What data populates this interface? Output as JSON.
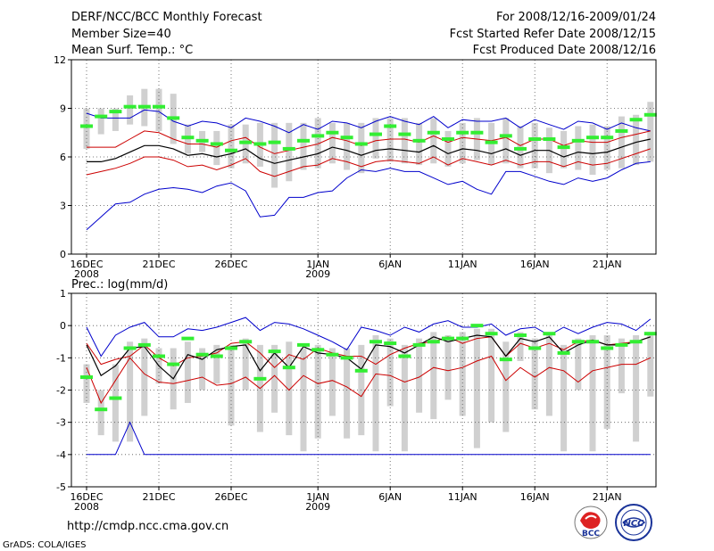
{
  "header": {
    "title": "DERF/NCC/BCC Monthly Forecast",
    "member_size": "Member Size=40",
    "variable": "Mean Surf. Temp.: °C",
    "forecast_range": "For 2008/12/16-2009/01/24",
    "fcst_started": "Fcst Started Refer Date 2008/12/15",
    "fcst_produced": "Fcst Produced Date 2008/12/16"
  },
  "footer": {
    "url": "http://cmdp.ncc.cma.gov.cn",
    "grads": "GrADS: COLA/IGES",
    "logo_bcc": "BCC",
    "logo_ncc": "NCC"
  },
  "colors": {
    "outer": "#0000cc",
    "inner": "#cc0000",
    "mean": "#000000",
    "bar": "#d0d0d0",
    "marker": "#33ee33"
  },
  "x_axis": {
    "days": 40,
    "tick_days": [
      1,
      6,
      11,
      17,
      22,
      27,
      32,
      37
    ],
    "tick_labels": [
      "16DEC",
      "21DEC",
      "26DEC",
      "1JAN",
      "6JAN",
      "11JAN",
      "16JAN",
      "21JAN"
    ],
    "tick_sublabels": [
      "2008",
      "",
      "",
      "2009",
      "",
      "",
      "",
      ""
    ]
  },
  "chart_data": [
    {
      "type": "line",
      "title": "Mean Surf. Temp.: °C",
      "ylim": [
        0,
        12
      ],
      "yticks": [
        0,
        3,
        6,
        9,
        12
      ],
      "x": [
        1,
        2,
        3,
        4,
        5,
        6,
        7,
        8,
        9,
        10,
        11,
        12,
        13,
        14,
        15,
        16,
        17,
        18,
        19,
        20,
        21,
        22,
        23,
        24,
        25,
        26,
        27,
        28,
        29,
        30,
        31,
        32,
        33,
        34,
        35,
        36,
        37,
        38,
        39,
        40
      ],
      "series": [
        {
          "name": "upper",
          "values": [
            8.7,
            8.4,
            8.4,
            8.4,
            8.9,
            8.8,
            8.2,
            7.9,
            8.2,
            8.1,
            7.8,
            8.4,
            8.2,
            7.9,
            7.5,
            8.0,
            7.7,
            8.2,
            8.1,
            7.8,
            8.2,
            8.5,
            8.2,
            8.0,
            8.5,
            7.8,
            8.3,
            8.2,
            8.2,
            8.4,
            7.8,
            8.3,
            8.0,
            7.7,
            8.2,
            8.1,
            7.7,
            8.1,
            7.8,
            7.6
          ]
        },
        {
          "name": "upper_inner",
          "values": [
            6.6,
            6.6,
            6.6,
            7.1,
            7.6,
            7.5,
            7.1,
            6.8,
            6.8,
            6.6,
            7.0,
            7.2,
            6.6,
            6.2,
            6.4,
            6.6,
            6.8,
            7.2,
            7.0,
            6.7,
            7.0,
            7.1,
            7.1,
            6.9,
            7.3,
            6.9,
            7.2,
            7.1,
            7.0,
            7.2,
            6.7,
            7.1,
            7.1,
            6.7,
            7.0,
            6.9,
            6.9,
            7.2,
            7.4,
            7.6
          ]
        },
        {
          "name": "mean",
          "values": [
            5.7,
            5.7,
            5.9,
            6.3,
            6.7,
            6.7,
            6.5,
            6.1,
            6.2,
            6.0,
            6.2,
            6.5,
            5.9,
            5.6,
            5.8,
            6.0,
            6.2,
            6.6,
            6.4,
            6.1,
            6.4,
            6.5,
            6.4,
            6.3,
            6.7,
            6.2,
            6.5,
            6.4,
            6.2,
            6.5,
            6.1,
            6.4,
            6.4,
            6.0,
            6.3,
            6.2,
            6.3,
            6.6,
            6.9,
            7.1
          ]
        },
        {
          "name": "lower_inner",
          "values": [
            4.9,
            5.1,
            5.3,
            5.6,
            6.0,
            6.0,
            5.8,
            5.4,
            5.5,
            5.2,
            5.5,
            5.9,
            5.1,
            4.8,
            5.1,
            5.4,
            5.5,
            5.9,
            5.7,
            5.4,
            5.7,
            5.8,
            5.7,
            5.6,
            6.0,
            5.5,
            5.9,
            5.7,
            5.5,
            5.8,
            5.5,
            5.7,
            5.7,
            5.4,
            5.7,
            5.5,
            5.6,
            5.9,
            6.2,
            6.5
          ]
        },
        {
          "name": "lower",
          "values": [
            1.5,
            2.3,
            3.1,
            3.2,
            3.7,
            4.0,
            4.1,
            4.0,
            3.8,
            4.2,
            4.4,
            3.9,
            2.3,
            2.4,
            3.5,
            3.5,
            3.8,
            3.9,
            4.7,
            5.2,
            5.1,
            5.3,
            5.1,
            5.1,
            4.7,
            4.3,
            4.5,
            4.0,
            3.7,
            5.1,
            5.1,
            4.8,
            4.5,
            4.3,
            4.7,
            4.5,
            4.7,
            5.2,
            5.6,
            5.7
          ]
        }
      ],
      "bars": {
        "low": [
          6.5,
          7.4,
          7.6,
          8.0,
          7.9,
          7.6,
          6.8,
          6.2,
          6.3,
          5.5,
          5.3,
          5.6,
          5.4,
          4.1,
          4.5,
          5.2,
          5.3,
          5.6,
          5.2,
          5.0,
          5.9,
          5.7,
          5.6,
          5.5,
          5.6,
          5.4,
          5.6,
          5.8,
          5.5,
          5.6,
          5.3,
          5.3,
          5.0,
          5.3,
          5.2,
          4.9,
          5.2,
          5.3,
          5.5,
          5.7
        ],
        "high": [
          9.0,
          9.0,
          9.0,
          9.8,
          10.2,
          10.2,
          9.9,
          8.0,
          7.6,
          7.6,
          8.0,
          8.0,
          8.1,
          8.1,
          8.1,
          8.1,
          8.4,
          8.1,
          8.1,
          8.1,
          8.4,
          8.4,
          8.4,
          8.1,
          8.4,
          7.6,
          8.1,
          8.4,
          8.1,
          8.4,
          7.9,
          8.1,
          7.8,
          7.6,
          7.9,
          8.0,
          7.9,
          8.5,
          8.6,
          9.4
        ]
      },
      "markers": [
        7.9,
        8.5,
        8.8,
        9.1,
        9.1,
        9.1,
        8.4,
        7.2,
        7.0,
        6.8,
        6.4,
        6.9,
        6.8,
        6.9,
        6.5,
        7.0,
        7.3,
        7.5,
        7.2,
        6.8,
        7.4,
        7.9,
        7.4,
        7.0,
        7.5,
        7.1,
        7.5,
        7.5,
        6.9,
        7.3,
        6.5,
        7.1,
        7.1,
        6.6,
        7.0,
        7.2,
        7.2,
        7.6,
        8.3,
        8.6
      ]
    },
    {
      "type": "line",
      "title": "Prec.: log(mm/d)",
      "ylim": [
        -5,
        1
      ],
      "yticks": [
        -5,
        -4,
        -3,
        -2,
        -1,
        0,
        1
      ],
      "x": [
        1,
        2,
        3,
        4,
        5,
        6,
        7,
        8,
        9,
        10,
        11,
        12,
        13,
        14,
        15,
        16,
        17,
        18,
        19,
        20,
        21,
        22,
        23,
        24,
        25,
        26,
        27,
        28,
        29,
        30,
        31,
        32,
        33,
        34,
        35,
        36,
        37,
        38,
        39,
        40
      ],
      "series": [
        {
          "name": "upper",
          "values": [
            -0.05,
            -0.95,
            -0.3,
            -0.05,
            0.1,
            -0.35,
            -0.35,
            -0.1,
            -0.15,
            -0.05,
            0.1,
            0.25,
            -0.15,
            0.1,
            0.05,
            -0.1,
            -0.3,
            -0.5,
            -0.75,
            -0.05,
            -0.15,
            -0.3,
            -0.05,
            -0.2,
            0.05,
            0.15,
            -0.05,
            -0.05,
            0.05,
            -0.3,
            -0.1,
            -0.05,
            -0.3,
            -0.05,
            -0.25,
            -0.05,
            0.1,
            0.05,
            -0.15,
            0.2
          ]
        },
        {
          "name": "mean_upper",
          "values": [
            -0.55,
            -1.2,
            -1.05,
            -0.95,
            -0.6,
            -1.0,
            -1.25,
            -1.0,
            -0.95,
            -0.85,
            -0.55,
            -0.5,
            -0.85,
            -1.3,
            -0.9,
            -1.05,
            -0.7,
            -0.85,
            -0.95,
            -0.95,
            -1.2,
            -0.9,
            -0.7,
            -0.55,
            -0.5,
            -0.35,
            -0.55,
            -0.4,
            -0.35,
            -0.95,
            -0.55,
            -0.7,
            -0.55,
            -0.75,
            -0.5,
            -0.45,
            -0.6,
            -0.55,
            -0.5,
            -0.35
          ]
        },
        {
          "name": "mean",
          "values": [
            -0.6,
            -1.55,
            -1.25,
            -0.7,
            -0.65,
            -1.25,
            -1.65,
            -0.9,
            -1.05,
            -0.75,
            -0.65,
            -0.6,
            -1.4,
            -0.85,
            -1.3,
            -0.65,
            -0.85,
            -0.9,
            -1.0,
            -1.35,
            -0.6,
            -0.65,
            -0.85,
            -0.6,
            -0.35,
            -0.5,
            -0.4,
            -0.3,
            -0.35,
            -0.95,
            -0.4,
            -0.5,
            -0.35,
            -0.85,
            -0.6,
            -0.45,
            -0.6,
            -0.6,
            -0.5,
            -0.35
          ]
        },
        {
          "name": "lower_inner",
          "values": [
            -1.3,
            -2.4,
            -1.7,
            -1.0,
            -1.5,
            -1.75,
            -1.8,
            -1.7,
            -1.6,
            -1.85,
            -1.8,
            -1.6,
            -1.95,
            -1.55,
            -2.0,
            -1.55,
            -1.8,
            -1.7,
            -1.9,
            -2.2,
            -1.5,
            -1.55,
            -1.75,
            -1.6,
            -1.3,
            -1.4,
            -1.3,
            -1.1,
            -0.95,
            -1.7,
            -1.3,
            -1.6,
            -1.3,
            -1.4,
            -1.75,
            -1.4,
            -1.3,
            -1.2,
            -1.2,
            -1.0
          ]
        },
        {
          "name": "lower",
          "values": [
            -4.0,
            -4.0,
            -4.0,
            -3.0,
            -4.0,
            -4.0,
            -4.0,
            -4.0,
            -4.0,
            -4.0,
            -4.0,
            -4.0,
            -4.0,
            -4.0,
            -4.0,
            -4.0,
            -4.0,
            -4.0,
            -4.0,
            -4.0,
            -4.0,
            -4.0,
            -4.0,
            -4.0,
            -4.0,
            -4.0,
            -4.0,
            -4.0,
            -4.0,
            -4.0,
            -4.0,
            -4.0,
            -4.0,
            -4.0,
            -4.0,
            -4.0,
            -4.0,
            -4.0,
            -4.0,
            -4.0
          ]
        }
      ],
      "bars": {
        "low": [
          -2.4,
          -3.4,
          -3.6,
          -3.6,
          -2.8,
          -1.8,
          -2.6,
          -2.4,
          -2.0,
          -1.8,
          -3.1,
          -2.0,
          -3.3,
          -2.7,
          -3.4,
          -3.9,
          -3.5,
          -2.8,
          -3.5,
          -3.4,
          -3.9,
          -2.5,
          -3.9,
          -2.7,
          -2.9,
          -2.3,
          -2.8,
          -3.8,
          -3.0,
          -3.3,
          -1.1,
          -2.6,
          -2.8,
          -3.9,
          -2.0,
          -3.9,
          -3.2,
          -2.1,
          -3.6,
          -2.2
        ],
        "high": [
          -1.2,
          -2.0,
          -1.2,
          -0.5,
          -0.4,
          -0.7,
          -0.7,
          -0.5,
          -0.7,
          -0.6,
          -0.6,
          -0.4,
          -0.6,
          -0.6,
          -0.5,
          -0.7,
          -0.6,
          -0.7,
          -0.7,
          -0.6,
          -0.3,
          -0.4,
          -0.6,
          -0.4,
          -0.2,
          -0.3,
          -0.2,
          -0.1,
          -0.1,
          -0.5,
          -0.2,
          -0.4,
          -0.3,
          -0.6,
          -0.4,
          -0.3,
          -0.3,
          -0.4,
          -0.3,
          -0.2
        ]
      },
      "markers": [
        -1.6,
        -2.6,
        -2.25,
        -0.7,
        -0.6,
        -0.95,
        -1.2,
        -0.4,
        -0.9,
        -0.95,
        -0.7,
        -0.5,
        -1.65,
        -0.8,
        -1.3,
        -0.6,
        -0.75,
        -0.9,
        -1.0,
        -1.4,
        -0.5,
        -0.55,
        -0.95,
        -0.6,
        -0.5,
        -0.4,
        -0.4,
        0.0,
        -0.25,
        -1.05,
        -0.3,
        -0.7,
        -0.25,
        -0.85,
        -0.5,
        -0.5,
        -0.7,
        -0.6,
        -0.5,
        -0.25
      ]
    }
  ]
}
